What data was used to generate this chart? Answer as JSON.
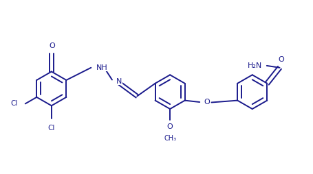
{
  "bg_color": "#ffffff",
  "line_color": "#1a1a8c",
  "text_color": "#1a1a8c",
  "figsize": [
    4.56,
    2.54
  ],
  "dpi": 100,
  "lw": 1.4,
  "fs": 7.5,
  "xlim": [
    0,
    9.5
  ],
  "ylim": [
    0,
    5.0
  ]
}
